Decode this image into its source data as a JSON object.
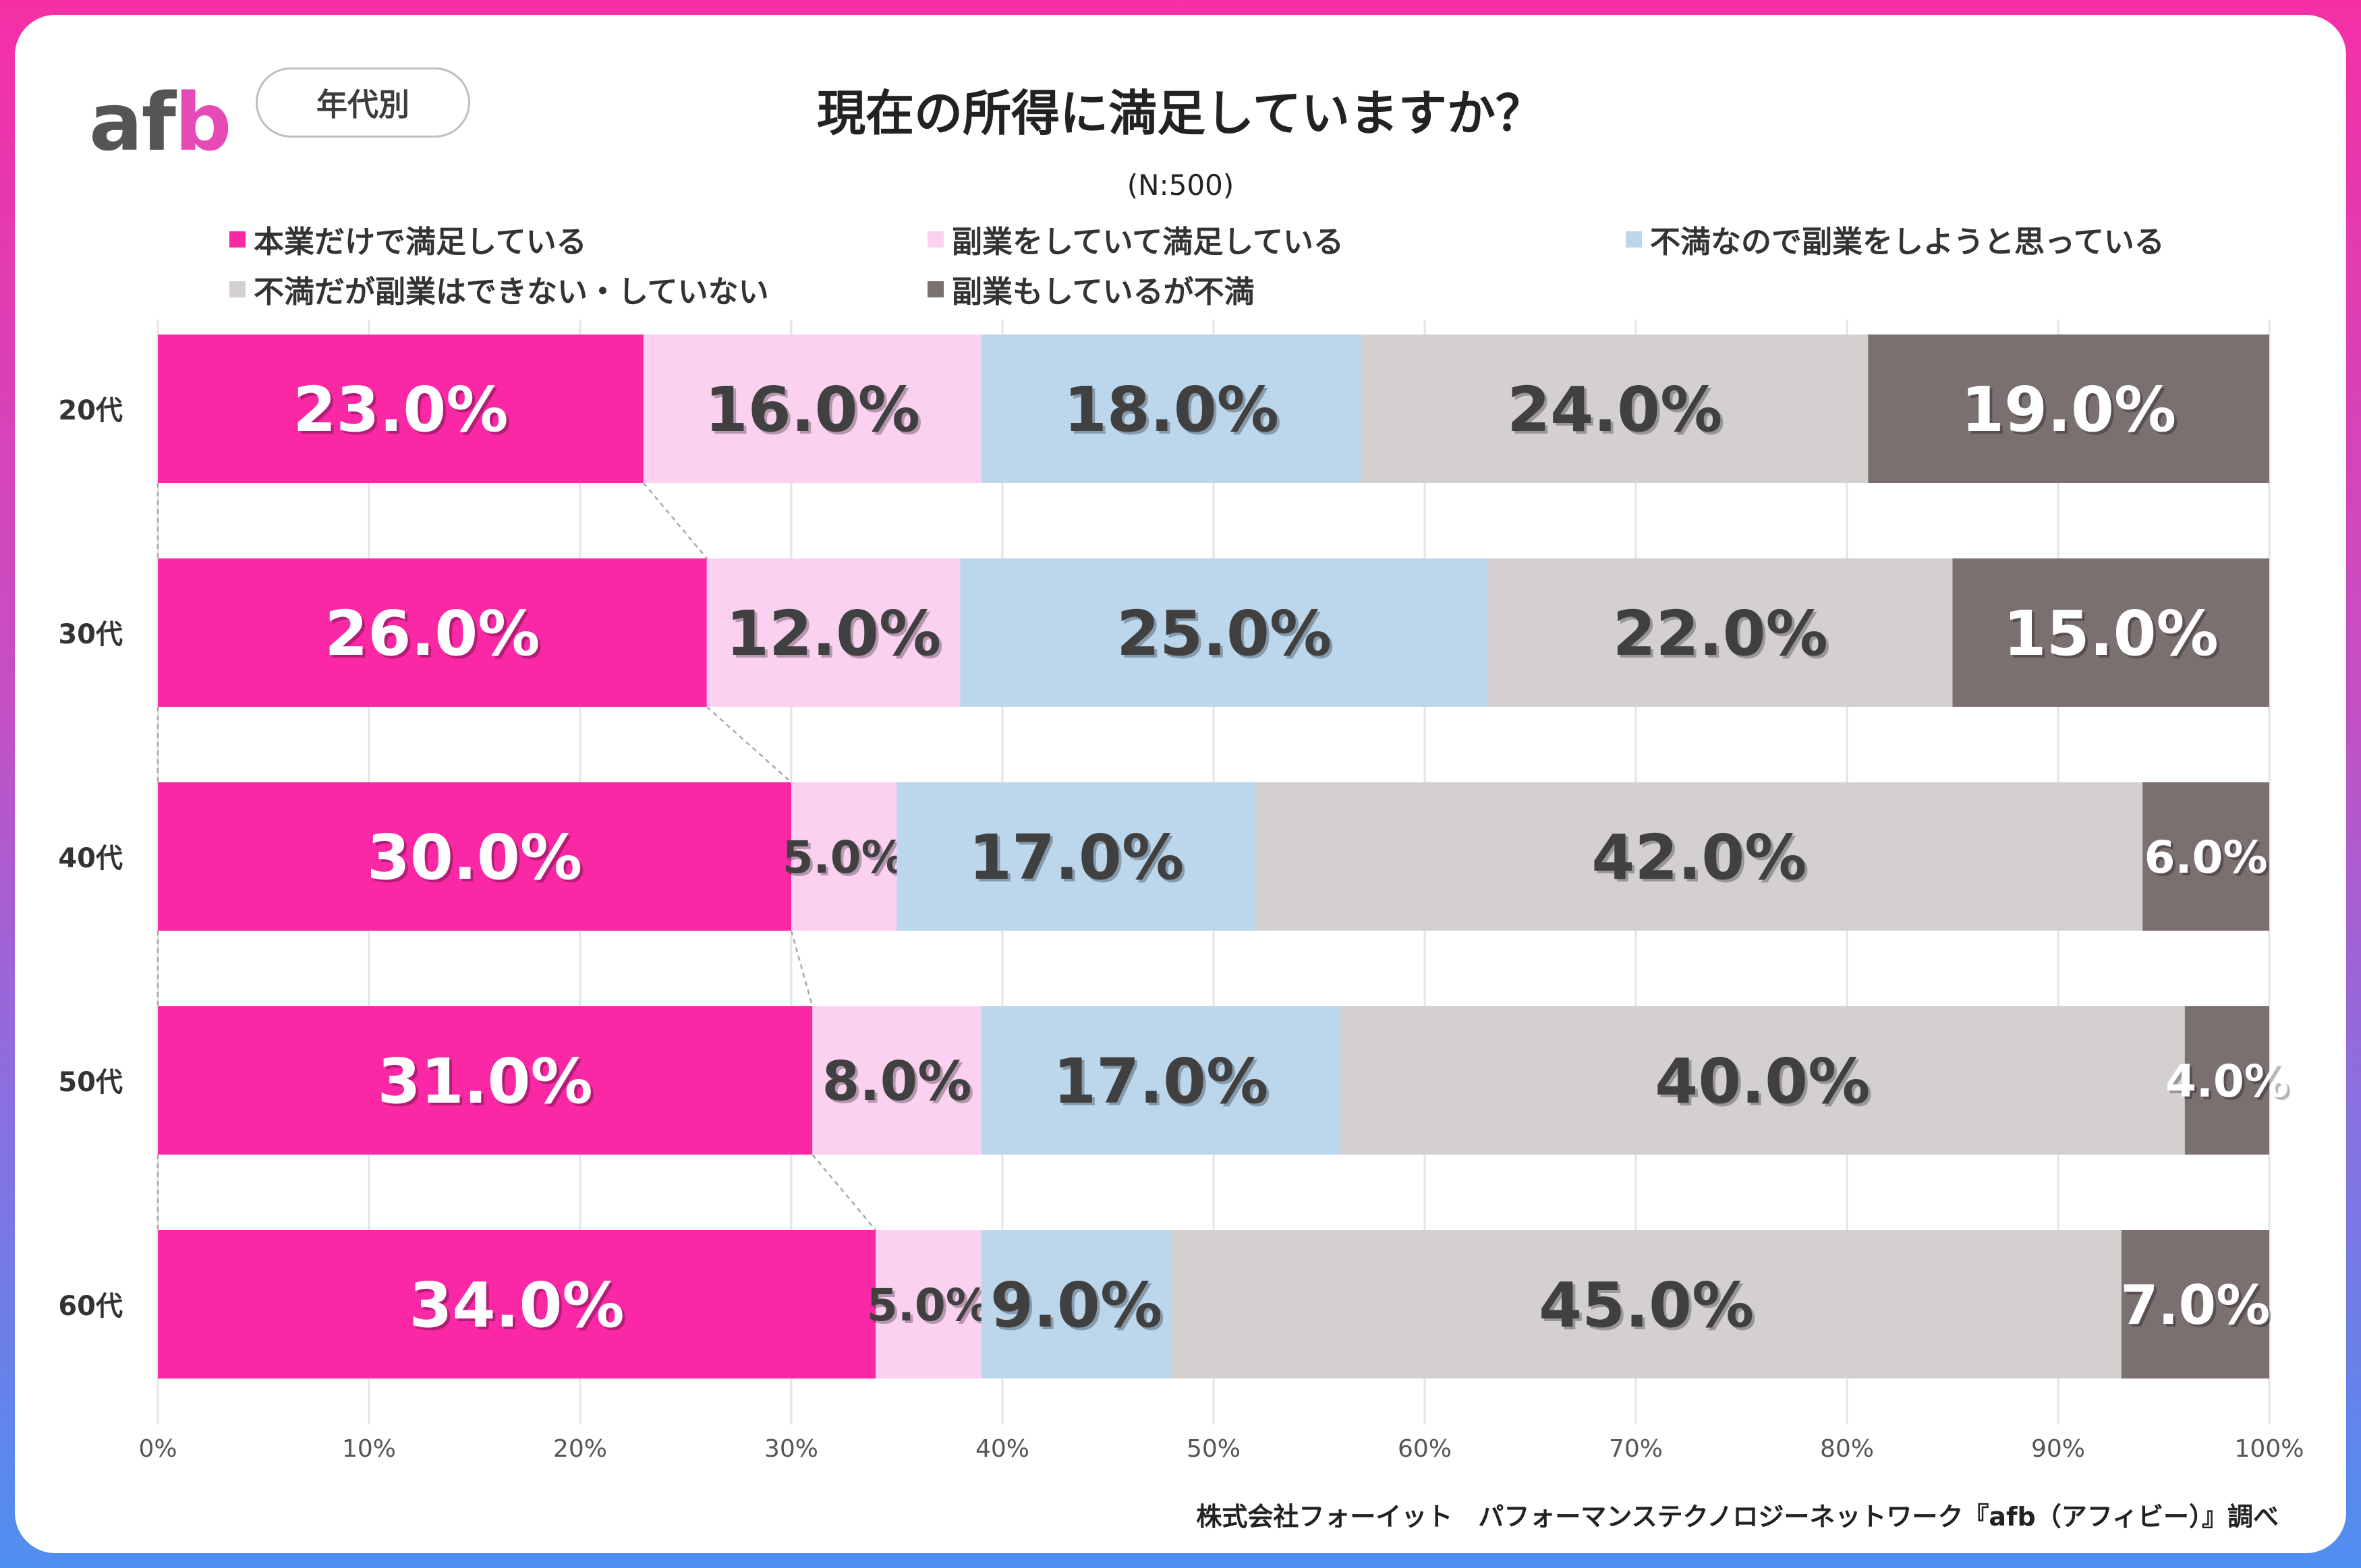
{
  "logo": {
    "text_a": "af",
    "text_b": "b"
  },
  "badge": "年代別",
  "title": "現在の所得に満足していますか？",
  "subtitle": "(N:500)",
  "source": "株式会社フォーイット　パフォーマンステクノロジーネットワーク『afb（アフィビー）』調べ",
  "chart_data": {
    "type": "bar",
    "orientation": "horizontal",
    "stacked": "percent",
    "categories": [
      "20代",
      "30代",
      "40代",
      "50代",
      "60代"
    ],
    "series": [
      {
        "name": "本業だけで満足している",
        "color": "#fa28a4",
        "label_color": "#ffffff",
        "values": [
          23.0,
          26.0,
          30.0,
          31.0,
          34.0
        ]
      },
      {
        "name": "副業をしていて満足している",
        "color": "#fbd1f0",
        "label_color": "#404040",
        "values": [
          16.0,
          12.0,
          5.0,
          8.0,
          5.0
        ]
      },
      {
        "name": "不満なので副業をしようと思っている",
        "color": "#bcd6ec",
        "label_color": "#404040",
        "values": [
          18.0,
          25.0,
          17.0,
          17.0,
          9.0
        ]
      },
      {
        "name": "不満だが副業はできない・していない",
        "color": "#d4d0d0",
        "label_color": "#404040",
        "values": [
          24.0,
          22.0,
          42.0,
          40.0,
          45.0
        ]
      },
      {
        "name": "副業もしているが不満",
        "color": "#7a7070",
        "label_color": "#ffffff",
        "values": [
          19.0,
          15.0,
          6.0,
          4.0,
          7.0
        ]
      }
    ],
    "value_labels": [
      [
        "23.0%",
        "16.0%",
        "18.0%",
        "24.0%",
        "19.0%"
      ],
      [
        "26.0%",
        "12.0%",
        "25.0%",
        "22.0%",
        "15.0%"
      ],
      [
        "30.0%",
        "5.0%",
        "17.0%",
        "42.0%",
        "6.0%"
      ],
      [
        "31.0%",
        "8.0%",
        "17.0%",
        "40.0%",
        "4.0%"
      ],
      [
        "34.0%",
        "5.0%",
        "9.0%",
        "45.0%",
        "7.0%"
      ]
    ],
    "x_ticks": [
      "0%",
      "10%",
      "20%",
      "30%",
      "40%",
      "50%",
      "60%",
      "70%",
      "80%",
      "90%",
      "100%"
    ],
    "xlim": [
      0,
      100
    ],
    "grid": true,
    "legend_position": "top",
    "series_lines": true
  }
}
